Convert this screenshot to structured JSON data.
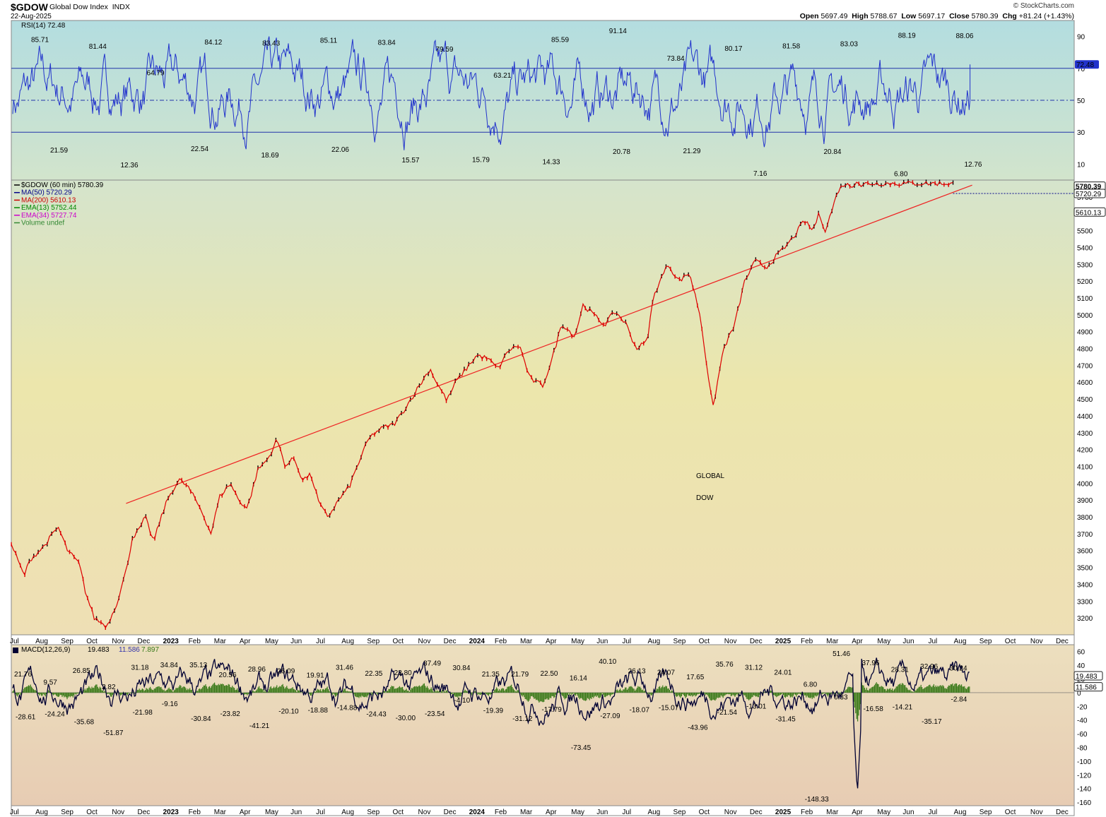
{
  "header": {
    "symbol": "$GDOW",
    "description": "Global Dow Index",
    "exchange": "INDX",
    "date": "22-Aug-2025",
    "logo": "© StockCharts.com",
    "open_label": "Open",
    "open": "5697.49",
    "high_label": "High",
    "high": "5788.67",
    "low_label": "Low",
    "low": "5697.17",
    "close_label": "Close",
    "close": "5780.39",
    "chg_label": "Chg",
    "chg": "+81.24 (+1.43%)"
  },
  "colors": {
    "rsi_line": "#2233cc",
    "price_up": "#000000",
    "price_down": "#dd0000",
    "trendline": "#ee2222",
    "macd_line": "#000033",
    "histogram": "#3a7a1a",
    "annotation": "#dd1111"
  },
  "annotation": {
    "line1": "GLOBAL",
    "line2": "DOW"
  },
  "x_axis_labels": [
    "Jul",
    "Aug",
    "Sep",
    "Oct",
    "Nov",
    "Dec",
    "2023",
    "Feb",
    "Mar",
    "Apr",
    "May",
    "Jun",
    "Jul",
    "Aug",
    "Sep",
    "Oct",
    "Nov",
    "Dec",
    "2024",
    "Feb",
    "Mar",
    "Apr",
    "May",
    "Jun",
    "Jul",
    "Aug",
    "Sep",
    "Oct",
    "Nov",
    "Dec",
    "2025",
    "Feb",
    "Mar",
    "Apr",
    "May",
    "Jun",
    "Jul",
    "Aug",
    "Sep",
    "Oct",
    "Nov",
    "Dec"
  ],
  "chart_data": [
    {
      "type": "line",
      "name": "RSI(14)",
      "legend": "RSI(14) 72.48",
      "current": "72.48",
      "ylim": [
        0,
        100
      ],
      "ticks": [
        10,
        30,
        50,
        70,
        90
      ],
      "reference_lines": [
        30,
        50,
        70
      ],
      "peak_labels": [
        "85.71",
        "81.44",
        "64.79",
        "84.12",
        "83.43",
        "85.11",
        "83.84",
        "79.59",
        "63.21",
        "85.59",
        "91.14",
        "73.84",
        "80.17",
        "81.58",
        "83.03",
        "88.19",
        "88.06"
      ],
      "trough_labels": [
        "21.59",
        "12.36",
        "22.54",
        "18.69",
        "22.06",
        "15.57",
        "15.79",
        "14.33",
        "20.78",
        "21.29",
        "7.16",
        "20.84",
        "6.80",
        "12.76"
      ]
    },
    {
      "type": "line",
      "name": "$GDOW (60 min)",
      "legend": [
        "$GDOW (60 min) 5780.39",
        "MA(50) 5720.29",
        "MA(200) 5610.13",
        "EMA(13) 5752.44",
        "EMA(34) 5727.74",
        "Volume undef"
      ],
      "ylim": [
        3100,
        5800
      ],
      "ticks": [
        3200,
        3300,
        3400,
        3500,
        3600,
        3700,
        3800,
        3900,
        4000,
        4100,
        4200,
        4300,
        4400,
        4500,
        4600,
        4700,
        4800,
        4900,
        5000,
        5100,
        5200,
        5300,
        5400,
        5500,
        5600,
        5700
      ],
      "price_labels": [
        "5780.39",
        "5720.29",
        "5610.13"
      ],
      "x": [
        0.0,
        0.012,
        0.018,
        0.03,
        0.044,
        0.053,
        0.064,
        0.07,
        0.078,
        0.09,
        0.1,
        0.108,
        0.114,
        0.12,
        0.126,
        0.134,
        0.14,
        0.148,
        0.158,
        0.166,
        0.178,
        0.188,
        0.196,
        0.206,
        0.214,
        0.222,
        0.232,
        0.242,
        0.25,
        0.258,
        0.266,
        0.274,
        0.282,
        0.29,
        0.298,
        0.308,
        0.318,
        0.328,
        0.336,
        0.342,
        0.35,
        0.36,
        0.368,
        0.378,
        0.386,
        0.394,
        0.4,
        0.41,
        0.418,
        0.428,
        0.438,
        0.448,
        0.458,
        0.468,
        0.478,
        0.488,
        0.5,
        0.508,
        0.518,
        0.53,
        0.538,
        0.548,
        0.558,
        0.568,
        0.578,
        0.588,
        0.598,
        0.604,
        0.61,
        0.618,
        0.628,
        0.638,
        0.648,
        0.66,
        0.67,
        0.68,
        0.69,
        0.7,
        0.71,
        0.72,
        0.728,
        0.738,
        0.746,
        0.754,
        0.76,
        0.766,
        0.772,
        0.778,
        0.784,
        0.79,
        0.796,
        0.8,
        0.804,
        0.81,
        0.818,
        0.826,
        0.834,
        0.842,
        0.85,
        0.858,
        0.866,
        0.874,
        0.882,
        0.886
      ],
      "close": [
        3640,
        3450,
        3550,
        3620,
        3740,
        3600,
        3520,
        3350,
        3200,
        3150,
        3300,
        3480,
        3680,
        3720,
        3800,
        3650,
        3780,
        3920,
        4020,
        3980,
        3850,
        3700,
        3920,
        4000,
        3900,
        3850,
        4080,
        4150,
        4260,
        4100,
        4150,
        4020,
        4050,
        3870,
        3800,
        3900,
        3980,
        4140,
        4260,
        4300,
        4330,
        4350,
        4420,
        4520,
        4600,
        4680,
        4600,
        4490,
        4600,
        4680,
        4760,
        4740,
        4680,
        4790,
        4820,
        4620,
        4580,
        4720,
        4950,
        4870,
        5060,
        5000,
        4940,
        5020,
        4950,
        4800,
        4840,
        5100,
        5200,
        5300,
        5200,
        5250,
        5000,
        4440,
        4800,
        4930,
        5200,
        5320,
        5280,
        5350,
        5400,
        5480,
        5560,
        5500,
        5600,
        5500,
        5620,
        5740,
        5780,
        5760,
        5800,
        5760,
        5780,
        5780,
        5780,
        5780,
        5780,
        5780,
        5780,
        5780,
        5780,
        5780,
        5780,
        5780
      ],
      "trendline": {
        "x": [
          0.108,
          0.904
        ],
        "y": [
          3880,
          5770
        ]
      }
    },
    {
      "type": "line",
      "name": "MACD(12,26,9)",
      "legend": [
        "MACD(12,26,9)",
        "19.483",
        "11.586",
        "7.897"
      ],
      "current_labels": [
        "19.483",
        "11.586"
      ],
      "ylim": [
        -165,
        70
      ],
      "ticks": [
        60,
        40,
        20,
        0,
        -20,
        -40,
        -60,
        -80,
        -100,
        -120,
        -140,
        -160
      ],
      "peak_labels": [
        "21.76",
        "9.57",
        "26.85",
        "2.82",
        "31.18",
        "34.84",
        "35.13",
        "20.56",
        "28.96",
        "26.09",
        "19.91",
        "31.46",
        "22.35",
        "23.80",
        "37.49",
        "30.84",
        "21.35",
        "21.79",
        "22.50",
        "16.14",
        "40.10",
        "26.13",
        "24.07",
        "17.65",
        "35.76",
        "31.12",
        "24.01",
        "6.80",
        "51.46",
        "37.96",
        "28.31",
        "32.96",
        "30.24"
      ],
      "trough_labels": [
        "-28.61",
        "-24.24",
        "-35.68",
        "-51.87",
        "-21.98",
        "-9.16",
        "-30.84",
        "-23.82",
        "-41.21",
        "-20.10",
        "-18.88",
        "-14.88",
        "-24.43",
        "-30.00",
        "-23.54",
        "-4.10",
        "-19.39",
        "-31.12",
        "-17.79",
        "-73.45",
        "-27.09",
        "-18.07",
        "-15.07",
        "-43.96",
        "-21.54",
        "-13.01",
        "-31.45",
        "-148.33",
        "0.33",
        "-16.58",
        "-14.21",
        "-35.17",
        "-2.84"
      ]
    }
  ]
}
